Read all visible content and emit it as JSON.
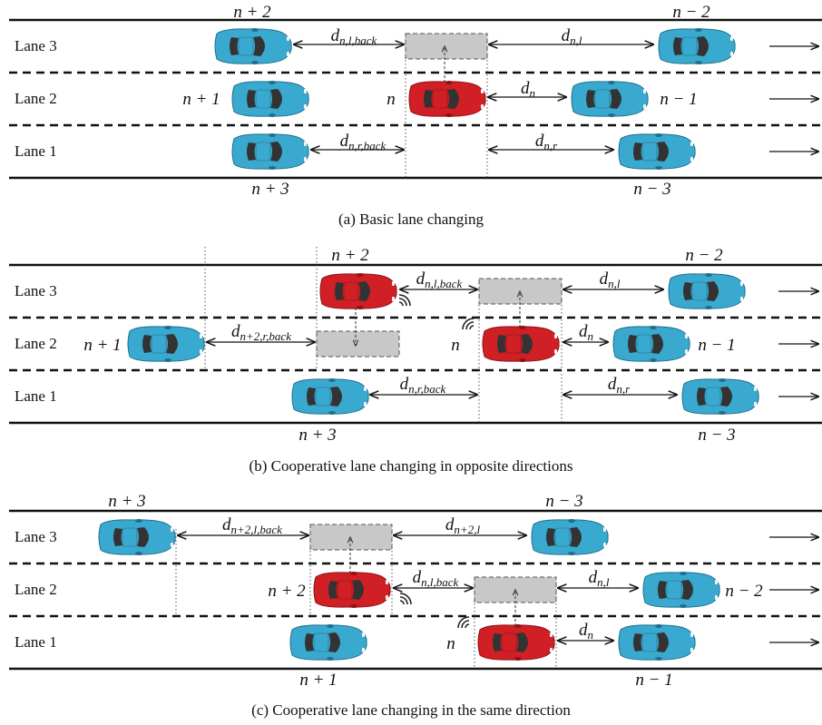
{
  "panels": [
    {
      "caption": "(a)  Basic lane changing",
      "lanes": [
        "Lane 3",
        "Lane 2",
        "Lane 1"
      ],
      "vehicles": [
        {
          "label": "n + 2",
          "lane": 3,
          "color": "blue",
          "labelPos": "above"
        },
        {
          "label": "n − 2",
          "lane": 3,
          "color": "blue",
          "labelPos": "above"
        },
        {
          "label": "n + 1",
          "lane": 2,
          "color": "blue",
          "labelPos": "left"
        },
        {
          "label": "n",
          "lane": 2,
          "color": "red",
          "labelPos": "left"
        },
        {
          "label": "n − 1",
          "lane": 2,
          "color": "blue",
          "labelPos": "right"
        },
        {
          "label": "n + 3",
          "lane": 1,
          "color": "blue",
          "labelPos": "below"
        },
        {
          "label": "n − 3",
          "lane": 1,
          "color": "blue",
          "labelPos": "below"
        }
      ],
      "distances": [
        {
          "base": "d",
          "sub": "n,l,back"
        },
        {
          "base": "d",
          "sub": "n,l"
        },
        {
          "base": "d",
          "sub": "n"
        },
        {
          "base": "d",
          "sub": "n,r,back"
        },
        {
          "base": "d",
          "sub": "n,r"
        }
      ]
    },
    {
      "caption": "(b)  Cooperative lane changing in opposite directions",
      "lanes": [
        "Lane 3",
        "Lane 2",
        "Lane 1"
      ],
      "vehicles": [
        {
          "label": "n + 2",
          "lane": 3,
          "color": "red",
          "labelPos": "above"
        },
        {
          "label": "n − 2",
          "lane": 3,
          "color": "blue",
          "labelPos": "above"
        },
        {
          "label": "n + 1",
          "lane": 2,
          "color": "blue",
          "labelPos": "left"
        },
        {
          "label": "n",
          "lane": 2,
          "color": "red",
          "labelPos": "left"
        },
        {
          "label": "n − 1",
          "lane": 2,
          "color": "blue",
          "labelPos": "right"
        },
        {
          "label": "n + 3",
          "lane": 1,
          "color": "blue",
          "labelPos": "below"
        },
        {
          "label": "n − 3",
          "lane": 1,
          "color": "blue",
          "labelPos": "below"
        }
      ],
      "distances": [
        {
          "base": "d",
          "sub": "n,l,back"
        },
        {
          "base": "d",
          "sub": "n,l"
        },
        {
          "base": "d",
          "sub": "n+2,r,back"
        },
        {
          "base": "d",
          "sub": "n"
        },
        {
          "base": "d",
          "sub": "n,r,back"
        },
        {
          "base": "d",
          "sub": "n,r"
        }
      ]
    },
    {
      "caption": "(c)  Cooperative lane changing in the same direction",
      "lanes": [
        "Lane 3",
        "Lane 2",
        "Lane 1"
      ],
      "vehicles": [
        {
          "label": "n + 3",
          "lane": 3,
          "color": "blue",
          "labelPos": "above"
        },
        {
          "label": "n − 3",
          "lane": 3,
          "color": "blue",
          "labelPos": "above"
        },
        {
          "label": "n + 2",
          "lane": 2,
          "color": "red",
          "labelPos": "left"
        },
        {
          "label": "n − 2",
          "lane": 2,
          "color": "blue",
          "labelPos": "right"
        },
        {
          "label": "n",
          "lane": 1,
          "color": "red",
          "labelPos": "left"
        },
        {
          "label": "n + 1",
          "lane": 1,
          "color": "blue",
          "labelPos": "below"
        },
        {
          "label": "n − 1",
          "lane": 1,
          "color": "blue",
          "labelPos": "below"
        }
      ],
      "distances": [
        {
          "base": "d",
          "sub": "n+2,l,back"
        },
        {
          "base": "d",
          "sub": "n+2,l"
        },
        {
          "base": "d",
          "sub": "n,l,back"
        },
        {
          "base": "d",
          "sub": "n,l"
        },
        {
          "base": "d",
          "sub": "n"
        }
      ]
    }
  ],
  "colors": {
    "blue_car": "#3aa9cf",
    "red_car": "#d01f25",
    "ghost": "#c8c8c8",
    "road": "#111111"
  },
  "icons": [
    "wireless-signal-icon",
    "direction-arrow-icon"
  ]
}
